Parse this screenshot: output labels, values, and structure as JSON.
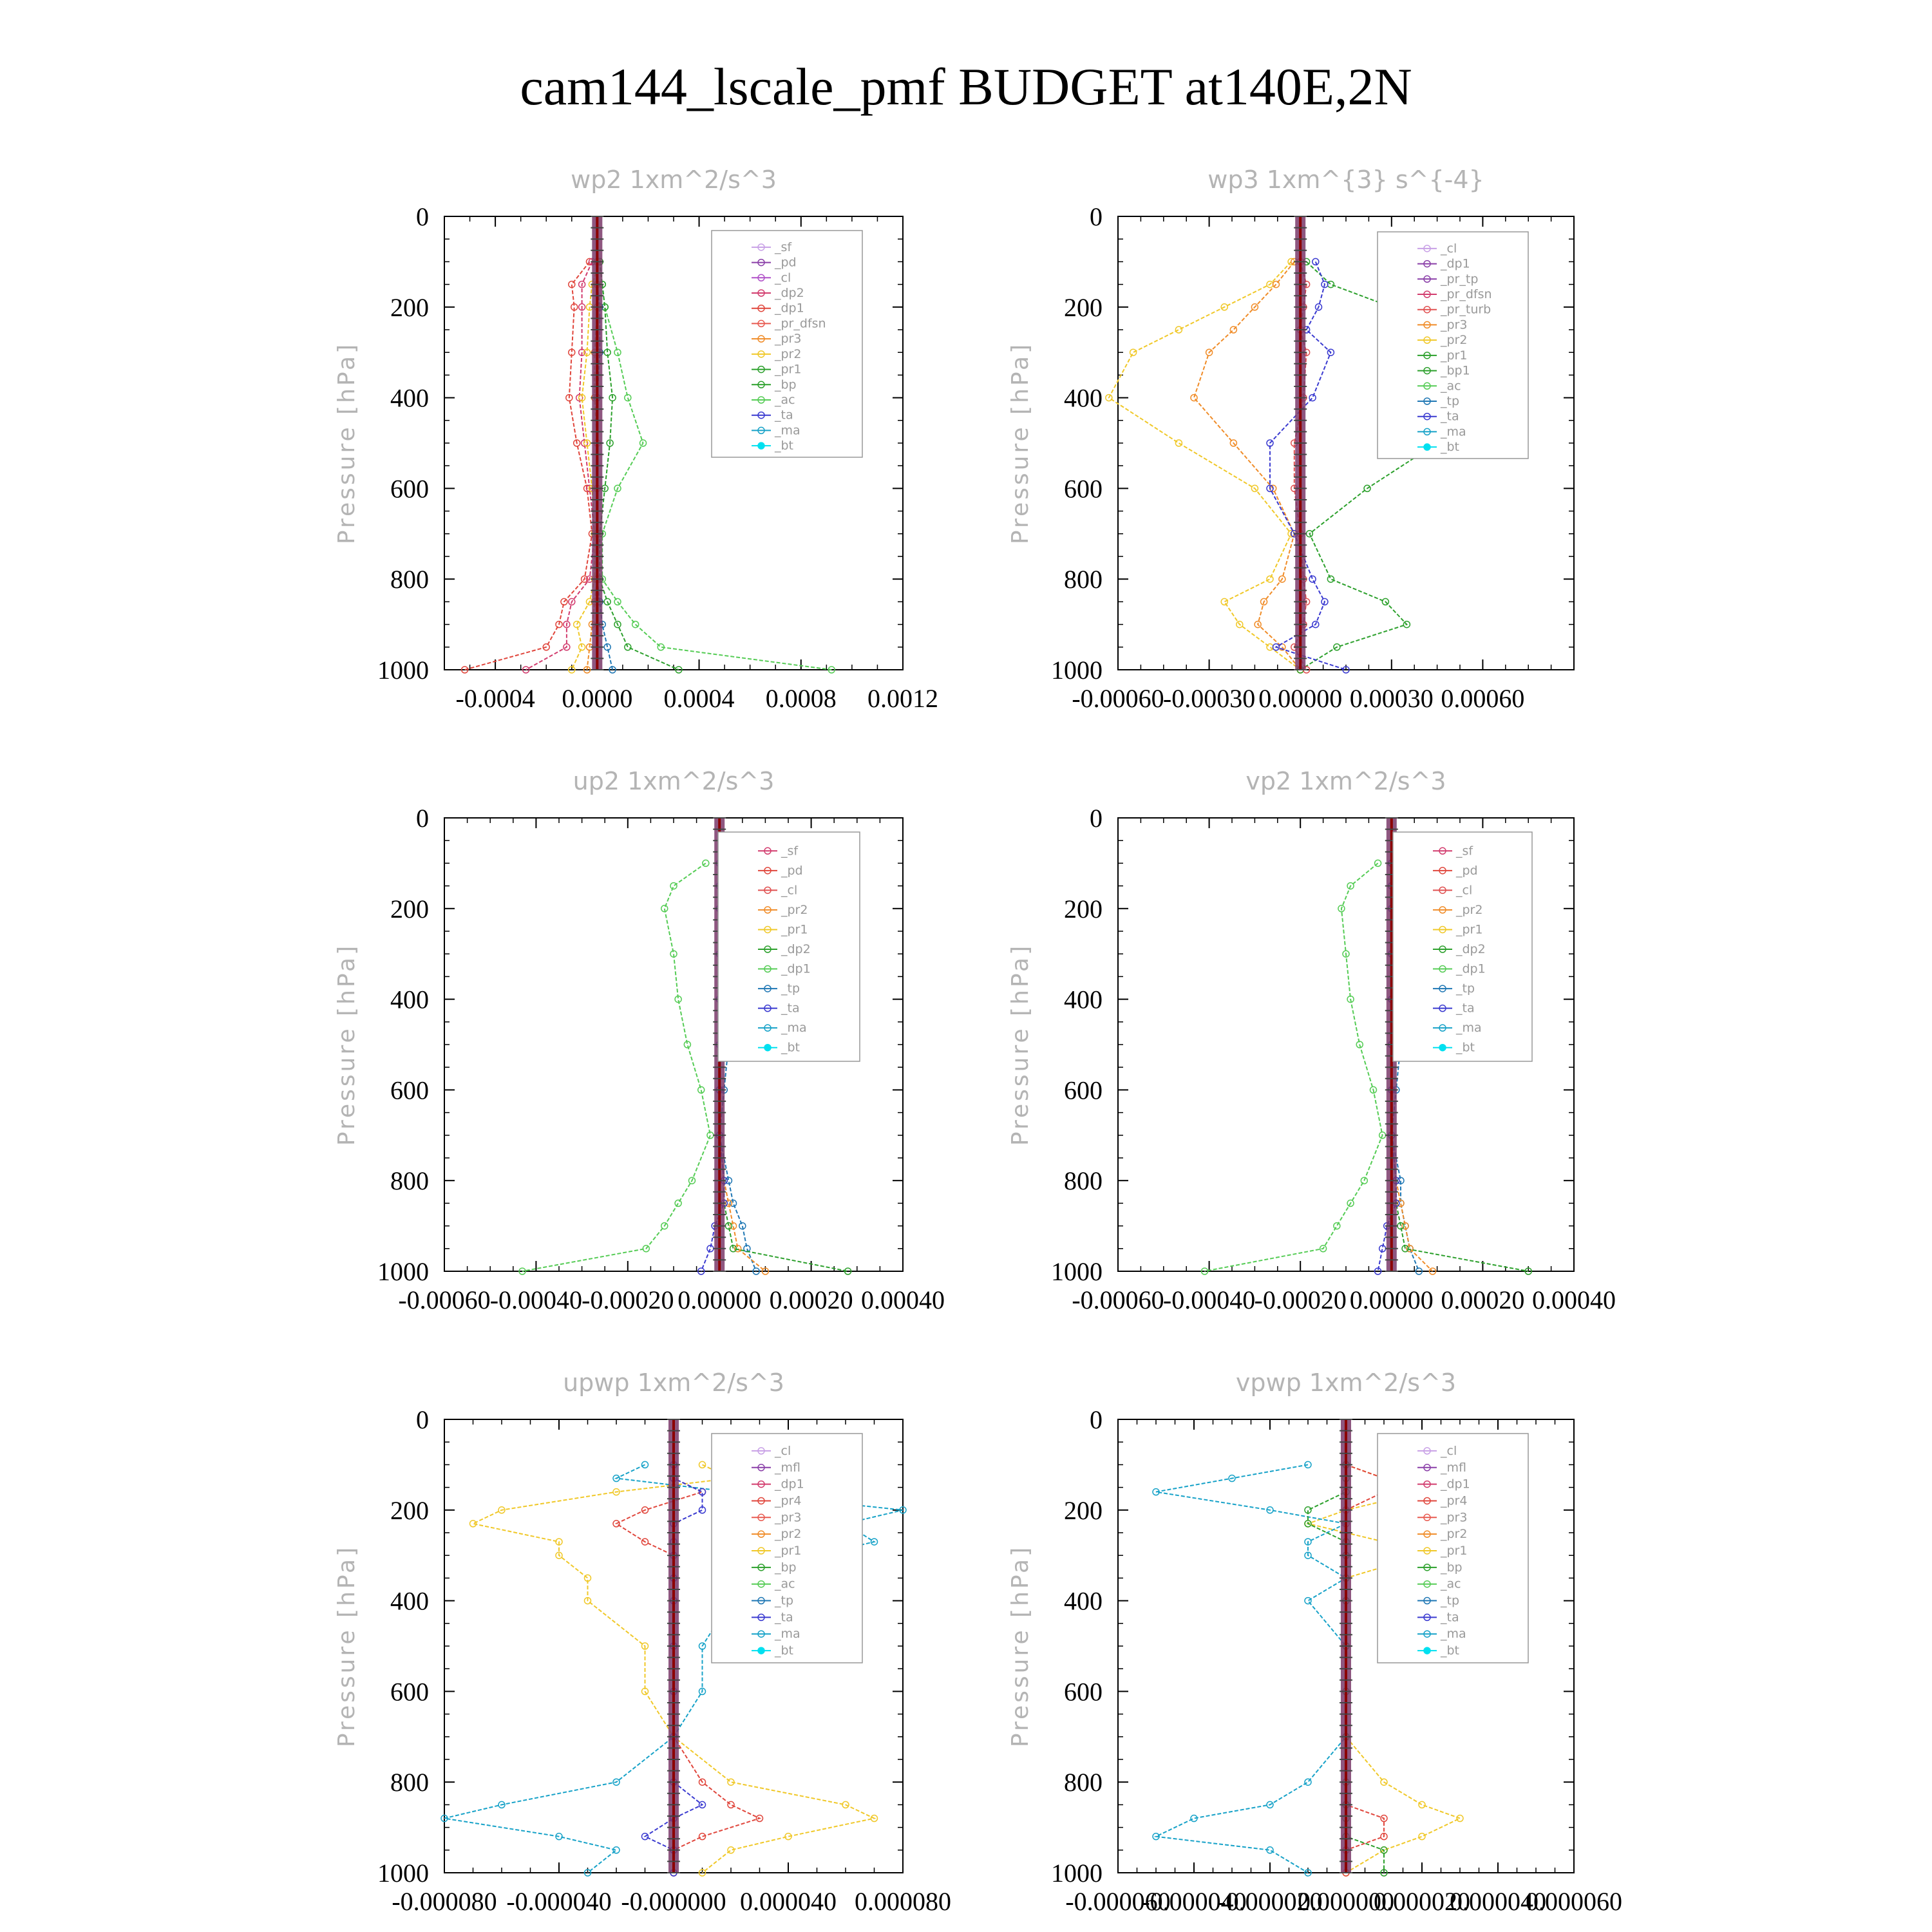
{
  "title": "cam144_lscale_pmf  BUDGET at140E,2N",
  "colors": {
    "sf": "#c8a0e6",
    "pd": "#8a3fa8",
    "cl": "#b050c8",
    "mfl": "#8a3fa8",
    "dp2": "#d23c6e",
    "dp1": "#e0463c",
    "pr_dfsn": "#e85a50",
    "pr_tp": "#8a3fa8",
    "pr_turb": "#e05050",
    "pr3": "#f08c28",
    "pr4": "#e05a50",
    "pr2": "#f0c828",
    "pr1": "#2ca02c",
    "bp": "#2ca02c",
    "ac": "#55cc55",
    "tp": "#1f77b4",
    "ta": "#3a3ad0",
    "ma": "#17a2c8",
    "bt": "#00e0f0",
    "cl_up": "#e05050",
    "bt_line": "#8b0000"
  },
  "chart_data": [
    {
      "type": "line",
      "title": "wp2  1xm^2/s^3",
      "ylabel": "Pressure [hPa]",
      "xlim": [
        -0.0006,
        0.0012
      ],
      "ylim": [
        1000,
        0
      ],
      "xticks": [
        "-0.0004",
        "0.0000",
        "0.0004",
        "0.0008",
        "0.0012"
      ],
      "xtick_values": [
        -0.0004,
        0,
        0.0004,
        0.0008,
        0.0012
      ],
      "yticks": [
        "0",
        "200",
        "400",
        "600",
        "800",
        "1000"
      ],
      "legend": [
        "_sf",
        "_pd",
        "_cl",
        "_dp2",
        "_dp1",
        "_pr_dfsn",
        "_pr3",
        "_pr2",
        "_pr1",
        "_bp",
        "_ac",
        "_ta",
        "_ma",
        "_bt"
      ],
      "legend_colors": [
        "sf",
        "pd",
        "cl",
        "dp2",
        "dp1",
        "pr_dfsn",
        "pr3",
        "pr2",
        "pr1",
        "bp",
        "ac",
        "ta",
        "ma",
        "bt"
      ],
      "levels": [
        100,
        150,
        200,
        300,
        400,
        500,
        600,
        700,
        800,
        850,
        900,
        950,
        1000
      ],
      "series": [
        {
          "name": "_dp1",
          "color": "dp1",
          "values": [
            -3e-05,
            -0.0001,
            -9e-05,
            -0.0001,
            -0.00011,
            -8e-05,
            -4e-05,
            -2e-05,
            -5e-05,
            -0.00013,
            -0.00015,
            -0.0002,
            -0.00052
          ]
        },
        {
          "name": "_dp2",
          "color": "dp2",
          "values": [
            -2e-05,
            -6e-05,
            -6e-05,
            -6e-05,
            -7e-05,
            -5e-05,
            -3e-05,
            -1e-05,
            -3e-05,
            -0.0001,
            -0.00012,
            -0.00012,
            -0.00028
          ]
        },
        {
          "name": "_pr2",
          "color": "pr2",
          "values": [
            1e-05,
            -2e-05,
            -3e-05,
            -4e-05,
            -6e-05,
            -4e-05,
            -2e-05,
            -1e-05,
            -1e-05,
            -3e-05,
            -8e-05,
            -6e-05,
            -0.0001
          ]
        },
        {
          "name": "_ac",
          "color": "ac",
          "values": [
            1e-05,
            2e-05,
            3e-05,
            8e-05,
            0.00012,
            0.00018,
            8e-05,
            2e-05,
            2e-05,
            8e-05,
            0.00015,
            0.00025,
            0.00092
          ]
        },
        {
          "name": "_bp",
          "color": "bp",
          "values": [
            1e-05,
            2e-05,
            3e-05,
            4e-05,
            6e-05,
            5e-05,
            3e-05,
            1e-05,
            1e-05,
            4e-05,
            8e-05,
            0.00012,
            0.00032
          ]
        },
        {
          "name": "_tp",
          "color": "tp",
          "values": [
            0.0,
            0.0,
            1e-05,
            1e-05,
            0.0,
            0.0,
            0.0,
            0.0,
            0.0,
            1e-05,
            2e-05,
            4e-05,
            6e-05
          ]
        },
        {
          "name": "_pr3",
          "color": "pr3",
          "values": [
            0.0,
            0.0,
            0.0,
            -1e-05,
            -1e-05,
            0.0,
            0.0,
            0.0,
            0.0,
            -1e-05,
            -2e-05,
            -3e-05,
            -4e-05
          ]
        }
      ]
    },
    {
      "type": "line",
      "title": "wp3  1xm^{3} s^{-4}",
      "ylabel": "Pressure [hPa]",
      "xlim": [
        -0.0006,
        0.0009
      ],
      "ylim": [
        1000,
        0
      ],
      "xticks": [
        "-0.00060",
        "-0.00030",
        "0.00000",
        "0.00030",
        "0.00060"
      ],
      "xtick_values": [
        -0.0006,
        -0.0003,
        0,
        0.0003,
        0.0006
      ],
      "yticks": [
        "0",
        "200",
        "400",
        "600",
        "800",
        "1000"
      ],
      "legend": [
        "_cl",
        "_dp1",
        "_pr_tp",
        "_pr_dfsn",
        "_pr_turb",
        "_pr3",
        "_pr2",
        "_pr1",
        "_bp1",
        "_ac",
        "_tp",
        "_ta",
        "_ma",
        "_bt"
      ],
      "legend_colors": [
        "sf",
        "pd",
        "pr_tp",
        "dp2",
        "pr_turb",
        "pr3",
        "pr2",
        "pr1",
        "pr1",
        "ac",
        "tp",
        "ta",
        "ma",
        "bt"
      ],
      "levels": [
        100,
        150,
        200,
        250,
        300,
        400,
        500,
        600,
        700,
        800,
        850,
        900,
        950,
        1000
      ],
      "series": [
        {
          "name": "_pr2",
          "color": "pr2",
          "values": [
            -3e-05,
            -0.0001,
            -0.00025,
            -0.0004,
            -0.00055,
            -0.00063,
            -0.0004,
            -0.00015,
            -3e-05,
            -0.0001,
            -0.00025,
            -0.0002,
            -0.0001,
            0.0
          ]
        },
        {
          "name": "_pr3",
          "color": "pr3",
          "values": [
            -2e-05,
            -8e-05,
            -0.00015,
            -0.00022,
            -0.0003,
            -0.00035,
            -0.00022,
            -9e-05,
            -2e-05,
            -6e-05,
            -0.00012,
            -0.00014,
            -6e-05,
            0.0
          ]
        },
        {
          "name": "_bp1",
          "color": "pr1",
          "values": [
            2e-05,
            0.0001,
            0.0003,
            0.00045,
            0.0006,
            0.0007,
            0.00045,
            0.00022,
            3e-05,
            0.0001,
            0.00028,
            0.00035,
            0.00012,
            0.0
          ]
        },
        {
          "name": "_tp",
          "color": "ta",
          "values": [
            5e-05,
            8e-05,
            6e-05,
            2e-05,
            0.0001,
            4e-05,
            -0.0001,
            -0.0001,
            -2e-05,
            4e-05,
            8e-05,
            5e-05,
            -8e-05,
            0.00015
          ]
        },
        {
          "name": "_pr_turb",
          "color": "pr_turb",
          "values": [
            0.0,
            2e-05,
            1e-05,
            0.0,
            2e-05,
            1e-05,
            -2e-05,
            -2e-05,
            0.0,
            1e-05,
            2e-05,
            1e-05,
            -2e-05,
            2e-05
          ]
        }
      ]
    },
    {
      "type": "line",
      "title": "up2  1xm^2/s^3",
      "ylabel": "Pressure [hPa]",
      "xlim": [
        -0.0006,
        0.0004
      ],
      "ylim": [
        1000,
        0
      ],
      "xticks": [
        "-0.00060",
        "-0.00040",
        "-0.00020",
        "0.00000",
        "0.00020",
        "0.00040"
      ],
      "xtick_values": [
        -0.0006,
        -0.0004,
        -0.0002,
        0,
        0.0002,
        0.0004
      ],
      "yticks": [
        "0",
        "200",
        "400",
        "600",
        "800",
        "1000"
      ],
      "legend": [
        "_sf",
        "_pd",
        "_cl",
        "_pr2",
        "_pr1",
        "_dp2",
        "_dp1",
        "_tp",
        "_ta",
        "_ma",
        "_bt"
      ],
      "legend_colors": [
        "dp2",
        "dp1",
        "cl_up",
        "pr3",
        "pr2",
        "pr1",
        "ac",
        "tp",
        "ta",
        "ma",
        "bt"
      ],
      "levels": [
        100,
        150,
        200,
        300,
        400,
        500,
        600,
        700,
        800,
        850,
        900,
        950,
        1000
      ],
      "series": [
        {
          "name": "_dp1",
          "color": "ac",
          "values": [
            -3e-05,
            -0.0001,
            -0.00012,
            -0.0001,
            -9e-05,
            -7e-05,
            -4e-05,
            -2e-05,
            -6e-05,
            -9e-05,
            -0.00012,
            -0.00016,
            -0.00043
          ]
        },
        {
          "name": "_tp",
          "color": "tp",
          "values": [
            2e-05,
            5e-05,
            5e-05,
            4e-05,
            3e-05,
            2e-05,
            1e-05,
            0.0,
            2e-05,
            3e-05,
            5e-05,
            6e-05,
            8e-05
          ]
        },
        {
          "name": "_pr2",
          "color": "pr3",
          "values": [
            1e-05,
            2e-05,
            2e-05,
            1e-05,
            0.0,
            0.0,
            0.0,
            0.0,
            1e-05,
            2e-05,
            3e-05,
            4e-05,
            0.0001
          ]
        },
        {
          "name": "_dp2",
          "color": "pr1",
          "values": [
            0.0,
            0.0,
            0.0,
            0.0,
            0.0,
            0.0,
            0.0,
            0.0,
            1e-05,
            1e-05,
            2e-05,
            3e-05,
            0.00028
          ]
        },
        {
          "name": "_ta",
          "color": "ta",
          "values": [
            0.0,
            0.0,
            0.0,
            0.0,
            0.0,
            0.0,
            0.0,
            0.0,
            1e-05,
            1e-05,
            -1e-05,
            -2e-05,
            -4e-05
          ]
        }
      ]
    },
    {
      "type": "line",
      "title": "vp2  1xm^2/s^3",
      "ylabel": "Pressure [hPa]",
      "xlim": [
        -0.0006,
        0.0004
      ],
      "ylim": [
        1000,
        0
      ],
      "xticks": [
        "-0.00060",
        "-0.00040",
        "-0.00020",
        "0.00000",
        "0.00020",
        "0.00040"
      ],
      "xtick_values": [
        -0.0006,
        -0.0004,
        -0.0002,
        0,
        0.0002,
        0.0004
      ],
      "yticks": [
        "0",
        "200",
        "400",
        "600",
        "800",
        "1000"
      ],
      "legend": [
        "_sf",
        "_pd",
        "_cl",
        "_pr2",
        "_pr1",
        "_dp2",
        "_dp1",
        "_tp",
        "_ta",
        "_ma",
        "_bt"
      ],
      "legend_colors": [
        "dp2",
        "dp1",
        "cl_up",
        "pr3",
        "pr2",
        "pr1",
        "ac",
        "tp",
        "ta",
        "ma",
        "bt"
      ],
      "levels": [
        100,
        150,
        200,
        300,
        400,
        500,
        600,
        700,
        800,
        850,
        900,
        950,
        1000
      ],
      "series": [
        {
          "name": "_dp1",
          "color": "ac",
          "values": [
            -3e-05,
            -9e-05,
            -0.00011,
            -0.0001,
            -9e-05,
            -7e-05,
            -4e-05,
            -2e-05,
            -6e-05,
            -9e-05,
            -0.00012,
            -0.00015,
            -0.00041
          ]
        },
        {
          "name": "_tp",
          "color": "tp",
          "values": [
            2e-05,
            5e-05,
            6e-05,
            4e-05,
            3e-05,
            2e-05,
            1e-05,
            0.0,
            2e-05,
            2e-05,
            3e-05,
            4e-05,
            6e-05
          ]
        },
        {
          "name": "_pr2",
          "color": "pr3",
          "values": [
            1e-05,
            2e-05,
            2e-05,
            1e-05,
            0.0,
            0.0,
            0.0,
            0.0,
            1e-05,
            2e-05,
            3e-05,
            4e-05,
            9e-05
          ]
        },
        {
          "name": "_dp2",
          "color": "pr1",
          "values": [
            0.0,
            0.0,
            0.0,
            0.0,
            0.0,
            0.0,
            0.0,
            0.0,
            1e-05,
            1e-05,
            2e-05,
            3e-05,
            0.0003
          ]
        },
        {
          "name": "_ta",
          "color": "ta",
          "values": [
            0.0,
            0.0,
            0.0,
            0.0,
            0.0,
            0.0,
            0.0,
            0.0,
            1e-05,
            1e-05,
            -1e-05,
            -2e-05,
            -3e-05
          ]
        }
      ]
    },
    {
      "type": "line",
      "title": "upwp  1xm^2/s^3",
      "ylabel": "Pressure [hPa]",
      "xlim": [
        -8e-05,
        8e-05
      ],
      "ylim": [
        1000,
        0
      ],
      "xticks": [
        "-0.000080",
        "-0.000040",
        "-0.000000",
        "0.000040",
        "0.000080"
      ],
      "xtick_values": [
        -8e-05,
        -4e-05,
        0,
        4e-05,
        8e-05
      ],
      "yticks": [
        "0",
        "200",
        "400",
        "600",
        "800",
        "1000"
      ],
      "legend": [
        "_cl",
        "_mfl",
        "_dp1",
        "_pr4",
        "_pr3",
        "_pr2",
        "_pr1",
        "_bp",
        "_ac",
        "_tp",
        "_ta",
        "_ma",
        "_bt"
      ],
      "legend_colors": [
        "sf",
        "mfl",
        "dp2",
        "dp1",
        "pr_dfsn",
        "pr3",
        "pr2",
        "pr1",
        "ac",
        "tp",
        "ta",
        "ma",
        "bt"
      ],
      "levels": [
        100,
        130,
        160,
        200,
        230,
        270,
        300,
        350,
        400,
        500,
        600,
        700,
        800,
        850,
        880,
        920,
        950,
        1000
      ],
      "series": [
        {
          "name": "_pr2",
          "color": "pr2",
          "values": [
            1e-05,
            2e-05,
            -2e-05,
            -6e-05,
            -7e-05,
            -4e-05,
            -4e-05,
            -3e-05,
            -3e-05,
            -1e-05,
            -1e-05,
            0.0,
            2e-05,
            6e-05,
            7e-05,
            4e-05,
            2e-05,
            1e-05
          ]
        },
        {
          "name": "_tp",
          "color": "ma",
          "values": [
            -1e-05,
            -2e-05,
            2e-05,
            8e-05,
            6e-05,
            7e-05,
            5e-05,
            4e-05,
            2e-05,
            1e-05,
            1e-05,
            0.0,
            -2e-05,
            -6e-05,
            -8e-05,
            -4e-05,
            -2e-05,
            -3e-05
          ]
        },
        {
          "name": "_dp1",
          "color": "dp1",
          "values": [
            0.0,
            0.0,
            1e-05,
            -1e-05,
            -2e-05,
            -1e-05,
            0.0,
            0.0,
            0.0,
            0.0,
            0.0,
            0.0,
            1e-05,
            2e-05,
            3e-05,
            1e-05,
            0.0,
            0.0
          ]
        },
        {
          "name": "_ta",
          "color": "ta",
          "values": [
            0.0,
            0.0,
            1e-05,
            1e-05,
            0.0,
            0.0,
            0.0,
            0.0,
            0.0,
            0.0,
            0.0,
            0.0,
            0.0,
            1e-05,
            0.0,
            -1e-05,
            0.0,
            0.0
          ]
        }
      ]
    },
    {
      "type": "line",
      "title": "vpwp  1xm^2/s^3",
      "ylabel": "Pressure [hPa]",
      "xlim": [
        -6e-05,
        6e-05
      ],
      "ylim": [
        1000,
        0
      ],
      "xticks": [
        "-0.000060",
        "-0.000040",
        "-0.000020",
        "0.000000",
        "0.000020",
        "0.000040",
        "0.000060"
      ],
      "xtick_values": [
        -6e-05,
        -4e-05,
        -2e-05,
        0,
        2e-05,
        4e-05,
        6e-05
      ],
      "yticks": [
        "0",
        "200",
        "400",
        "600",
        "800",
        "1000"
      ],
      "legend": [
        "_cl",
        "_mfl",
        "_dp1",
        "_pr4",
        "_pr3",
        "_pr2",
        "_pr1",
        "_bp",
        "_ac",
        "_tp",
        "_ta",
        "_ma",
        "_bt"
      ],
      "legend_colors": [
        "sf",
        "mfl",
        "dp2",
        "dp1",
        "pr_dfsn",
        "pr3",
        "pr2",
        "pr1",
        "ac",
        "tp",
        "ta",
        "ma",
        "bt"
      ],
      "levels": [
        100,
        130,
        160,
        200,
        230,
        270,
        300,
        350,
        400,
        500,
        600,
        700,
        800,
        850,
        880,
        920,
        950,
        1000
      ],
      "series": [
        {
          "name": "_pr2",
          "color": "pr2",
          "values": [
            0.0,
            1e-05,
            2e-05,
            0.0,
            -1e-05,
            1e-05,
            2e-05,
            0.0,
            0.0,
            0.0,
            0.0,
            0.0,
            1e-05,
            2e-05,
            3e-05,
            2e-05,
            1e-05,
            0.0
          ]
        },
        {
          "name": "_tp",
          "color": "ma",
          "values": [
            -1e-05,
            -3e-05,
            -5e-05,
            -2e-05,
            0.0,
            -1e-05,
            -1e-05,
            0.0,
            -1e-05,
            0.0,
            0.0,
            0.0,
            -1e-05,
            -2e-05,
            -4e-05,
            -5e-05,
            -2e-05,
            -1e-05
          ]
        },
        {
          "name": "_dp1",
          "color": "dp1",
          "values": [
            0.0,
            1e-05,
            1e-05,
            0.0,
            0.0,
            0.0,
            0.0,
            0.0,
            0.0,
            0.0,
            0.0,
            0.0,
            0.0,
            0.0,
            1e-05,
            1e-05,
            0.0,
            0.0
          ]
        },
        {
          "name": "_pr1",
          "color": "pr1",
          "values": [
            0.0,
            0.0,
            0.0,
            -1e-05,
            -1e-05,
            0.0,
            0.0,
            0.0,
            0.0,
            0.0,
            0.0,
            0.0,
            0.0,
            0.0,
            0.0,
            0.0,
            1e-05,
            1e-05
          ]
        }
      ]
    }
  ]
}
